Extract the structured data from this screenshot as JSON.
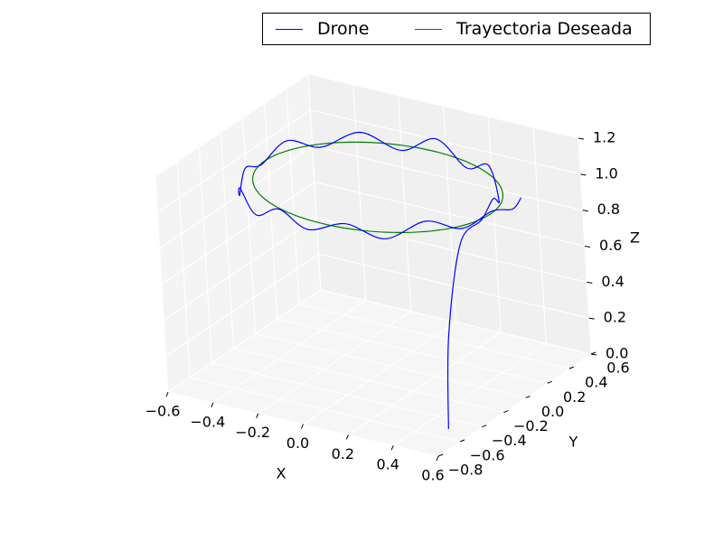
{
  "chart_data": {
    "type": "line",
    "projection": "3d",
    "title": "",
    "xlabel": "X",
    "ylabel": "Y",
    "zlabel": "Z",
    "xlim": [
      -0.6,
      0.6
    ],
    "ylim": [
      -0.8,
      0.6
    ],
    "zlim": [
      0.0,
      1.2
    ],
    "x_ticks": [
      "−0.6",
      "−0.4",
      "−0.2",
      "0.0",
      "0.2",
      "0.4",
      "0.6"
    ],
    "y_ticks": [
      "−0.8",
      "−0.6",
      "−0.4",
      "−0.2",
      "0.0",
      "0.2",
      "0.4",
      "0.6"
    ],
    "z_ticks": [
      "0.0",
      "0.2",
      "0.4",
      "0.6",
      "0.8",
      "1.0",
      "1.2"
    ],
    "grid": true,
    "legend_placement": "top-right",
    "series": [
      {
        "name": "Drone",
        "color": "#0000ff",
        "x": [
          0.5,
          0.5,
          0.5,
          0.5,
          0.48,
          0.42,
          0.3,
          0.15,
          0.0,
          -0.15,
          -0.3,
          -0.42,
          -0.49,
          -0.52,
          -0.5,
          -0.46,
          -0.4,
          -0.3,
          -0.18,
          -0.05,
          0.1,
          0.24,
          0.36,
          0.45,
          0.51,
          0.53,
          0.52
        ],
        "y": [
          -0.5,
          -0.45,
          -0.3,
          -0.1,
          0.05,
          0.22,
          0.38,
          0.48,
          0.52,
          0.5,
          0.44,
          0.32,
          0.16,
          -0.02,
          -0.2,
          -0.34,
          -0.45,
          -0.52,
          -0.55,
          -0.56,
          -0.52,
          -0.45,
          -0.32,
          -0.18,
          -0.02,
          0.12,
          0.22
        ],
        "z": [
          0.0,
          0.5,
          0.95,
          1.0,
          1.05,
          0.95,
          1.05,
          0.95,
          1.05,
          0.95,
          1.03,
          0.96,
          1.04,
          0.97,
          1.03,
          0.95,
          1.05,
          0.96,
          1.04,
          0.97,
          1.03,
          0.96,
          1.04,
          0.97,
          1.02,
          0.98,
          1.0
        ]
      },
      {
        "name": "Trayectoria Deseada",
        "color": "#008000",
        "shape": "circle",
        "center": [
          0.0,
          -0.02,
          1.0
        ],
        "radius": 0.5
      }
    ]
  }
}
